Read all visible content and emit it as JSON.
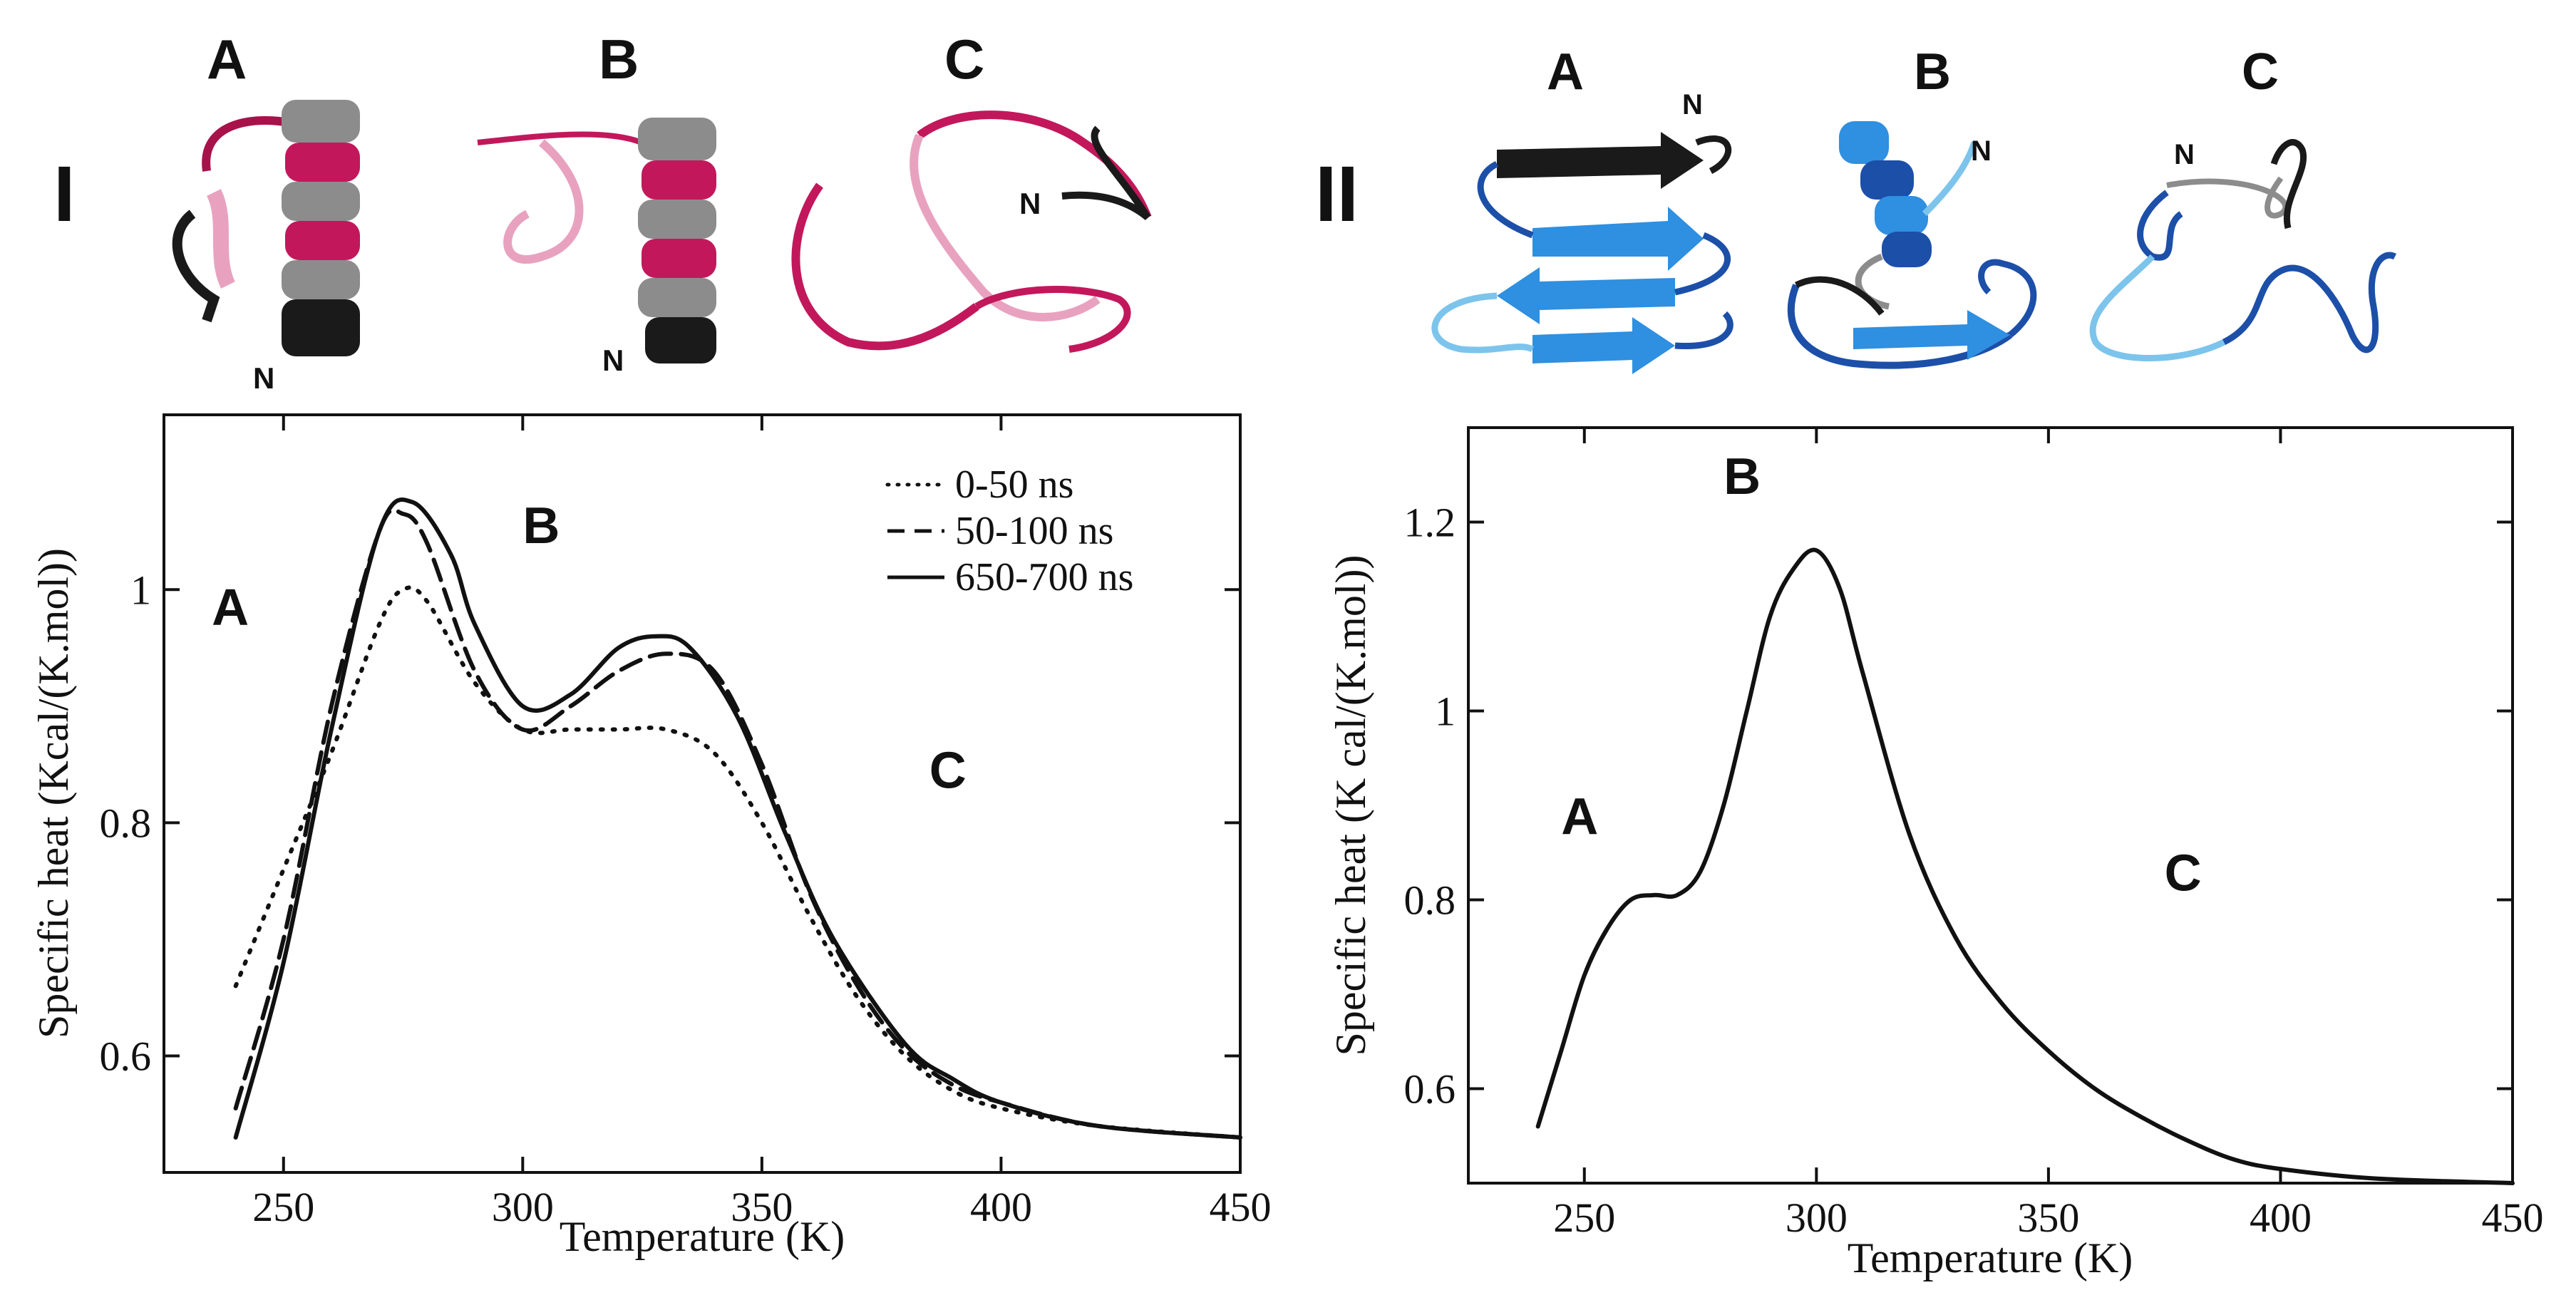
{
  "figure": {
    "panel_I": {
      "label": "I",
      "structure_labels": [
        "A",
        "B",
        "C"
      ],
      "n_terminus": "N"
    },
    "panel_II": {
      "label": "II",
      "structure_labels": [
        "A",
        "B",
        "C"
      ],
      "n_terminus": "N"
    },
    "colors": {
      "helix_magenta": "#c2185b",
      "helix_pink": "#e8a2bf",
      "helix_grey": "#8c8c8c",
      "coil_dark": "#1a1a1a",
      "sheet_blue": "#2f8fe0",
      "sheet_dark_blue": "#1c4fa8",
      "coil_light_blue": "#7cc4ec"
    }
  },
  "chart_data": [
    {
      "type": "line",
      "panel": "I",
      "xlabel": "Temperature (K)",
      "ylabel": "Specific heat (Kcal/(K.mol))",
      "xlim": [
        225,
        450
      ],
      "ylim": [
        0.5,
        1.15
      ],
      "x_ticks": [
        250,
        300,
        350,
        400,
        450
      ],
      "y_ticks": [
        0.6,
        0.8,
        1
      ],
      "y_tick_labels": [
        "0.6",
        "0.8",
        "1"
      ],
      "grid": false,
      "legend_position": "top-right",
      "region_labels": [
        {
          "text": "A",
          "x": 235,
          "y": 0.97
        },
        {
          "text": "B",
          "x": 300,
          "y": 1.04
        },
        {
          "text": "C",
          "x": 385,
          "y": 0.83
        }
      ],
      "series": [
        {
          "name": "0-50 ns",
          "style": "dotted",
          "x": [
            240,
            250,
            260,
            270,
            275,
            280,
            290,
            300,
            310,
            320,
            330,
            340,
            350,
            360,
            370,
            380,
            390,
            400,
            420,
            450
          ],
          "y": [
            0.66,
            0.76,
            0.86,
            0.97,
            1.0,
            0.99,
            0.92,
            0.88,
            0.88,
            0.88,
            0.88,
            0.86,
            0.8,
            0.72,
            0.65,
            0.6,
            0.57,
            0.555,
            0.54,
            0.53
          ]
        },
        {
          "name": "50-100 ns",
          "style": "dashed",
          "x": [
            240,
            250,
            260,
            270,
            275,
            280,
            290,
            300,
            310,
            320,
            330,
            340,
            350,
            360,
            370,
            380,
            390,
            400,
            420,
            450
          ],
          "y": [
            0.555,
            0.7,
            0.9,
            1.05,
            1.065,
            1.04,
            0.93,
            0.88,
            0.9,
            0.93,
            0.945,
            0.93,
            0.85,
            0.74,
            0.66,
            0.605,
            0.575,
            0.56,
            0.54,
            0.53
          ]
        },
        {
          "name": "650-700 ns",
          "style": "solid",
          "x": [
            240,
            250,
            260,
            270,
            277,
            285,
            290,
            300,
            310,
            320,
            328,
            335,
            345,
            355,
            365,
            380,
            390,
            400,
            420,
            450
          ],
          "y": [
            0.53,
            0.68,
            0.88,
            1.05,
            1.075,
            1.03,
            0.97,
            0.9,
            0.91,
            0.95,
            0.96,
            0.95,
            0.89,
            0.79,
            0.7,
            0.61,
            0.58,
            0.56,
            0.54,
            0.53
          ]
        }
      ]
    },
    {
      "type": "line",
      "panel": "II",
      "xlabel": "Temperature (K)",
      "ylabel": "Specific heat (K cal/(K.mol))",
      "xlim": [
        225,
        450
      ],
      "ylim": [
        0.5,
        1.3
      ],
      "x_ticks": [
        250,
        300,
        350,
        400,
        450
      ],
      "y_ticks": [
        0.6,
        0.8,
        1,
        1.2
      ],
      "y_tick_labels": [
        "0.6",
        "0.8",
        "1",
        "1.2"
      ],
      "grid": false,
      "region_labels": [
        {
          "text": "A",
          "x": 245,
          "y": 0.87
        },
        {
          "text": "B",
          "x": 280,
          "y": 1.23
        },
        {
          "text": "C",
          "x": 375,
          "y": 0.81
        }
      ],
      "series": [
        {
          "name": "specific heat",
          "style": "solid",
          "x": [
            240,
            245,
            250,
            255,
            260,
            265,
            270,
            275,
            280,
            285,
            290,
            295,
            300,
            305,
            310,
            320,
            330,
            340,
            350,
            360,
            370,
            380,
            390,
            400,
            420,
            450
          ],
          "y": [
            0.56,
            0.64,
            0.72,
            0.77,
            0.8,
            0.805,
            0.805,
            0.83,
            0.9,
            1.0,
            1.1,
            1.15,
            1.17,
            1.13,
            1.04,
            0.87,
            0.76,
            0.69,
            0.64,
            0.6,
            0.57,
            0.545,
            0.525,
            0.515,
            0.505,
            0.5
          ]
        }
      ]
    }
  ]
}
